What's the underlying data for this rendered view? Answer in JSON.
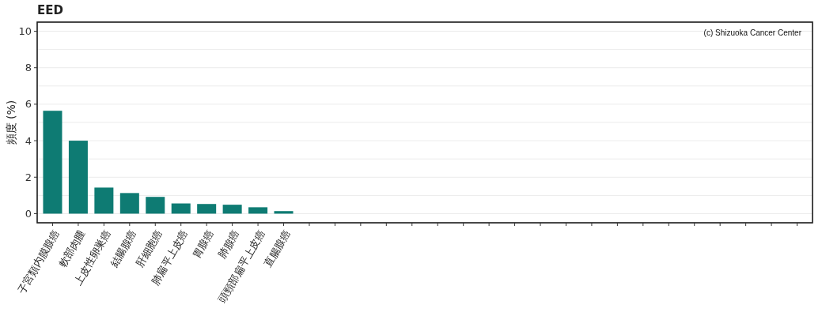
{
  "chart_data": {
    "type": "bar",
    "title": "EED",
    "ylabel": "頻度 (%)",
    "annotations": [
      "(c) Shizuoka Cancer Center"
    ],
    "categories": [
      "子宮類内膜腺癌",
      "軟部肉腫",
      "上皮性卵巣癌",
      "結腸腺癌",
      "肝細胞癌",
      "肺扁平上皮癌",
      "胃腺癌",
      "肺腺癌",
      "頭頸部扁平上皮癌",
      "直腸腺癌",
      null,
      null,
      null,
      null,
      null,
      null,
      null,
      null,
      null,
      null,
      null,
      null,
      null,
      null,
      null,
      null,
      null,
      null,
      null,
      null
    ],
    "values": [
      5.64,
      4.0,
      1.43,
      1.13,
      0.92,
      0.56,
      0.53,
      0.49,
      0.35,
      0.14,
      null,
      null,
      null,
      null,
      null,
      null,
      null,
      null,
      null,
      null,
      null,
      null,
      null,
      null,
      null,
      null,
      null,
      null,
      null,
      null
    ],
    "color": "#0e7b73",
    "ylim": [
      -0.5,
      10.5
    ],
    "yticks": [
      0,
      {
        "value": 1,
        "label": null
      },
      2,
      {
        "value": 3,
        "label": null
      },
      4,
      {
        "value": 5,
        "label": null
      },
      6,
      {
        "value": 7,
        "label": null
      },
      8,
      {
        "value": 9,
        "label": null
      },
      10
    ],
    "grid": "y"
  }
}
